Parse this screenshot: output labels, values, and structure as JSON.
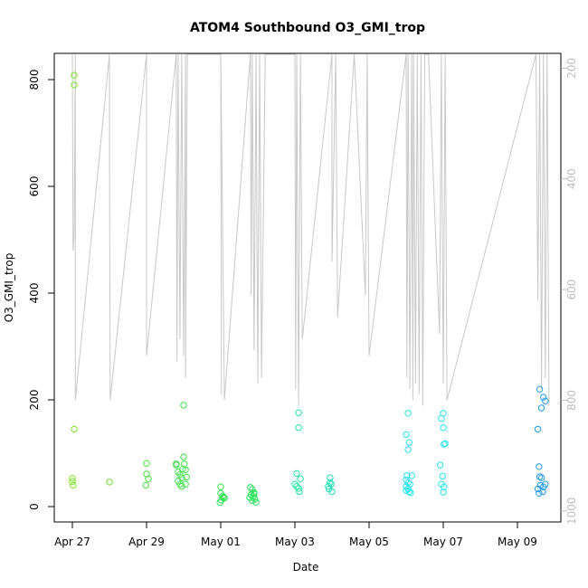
{
  "chart_data": {
    "type": "scatter",
    "title": "ATOM4 Southbound O3_GMI_trop",
    "xlabel": "Date",
    "ylabel": "O3_GMI_trop",
    "x_ticks": [
      "Apr 27",
      "Apr 29",
      "May 01",
      "May 03",
      "May 05",
      "May 07",
      "May 09"
    ],
    "y_ticks": [
      "0",
      "200",
      "400",
      "600",
      "800"
    ],
    "ylim": [
      0,
      840
    ],
    "y2_ticks": [
      "200",
      "400",
      "600",
      "800",
      "1000"
    ],
    "y2lim_pressure": [
      1020,
      175
    ],
    "grid": false,
    "points": [
      {
        "day": 0.05,
        "y": 808,
        "color": "#7fe52a"
      },
      {
        "day": 0.05,
        "y": 790,
        "color": "#7fe52a"
      },
      {
        "day": 0.05,
        "y": 145,
        "color": "#7fe52a"
      },
      {
        "day": 0.0,
        "y": 53,
        "color": "#7fe52a"
      },
      {
        "day": 0.0,
        "y": 47,
        "color": "#7fe52a"
      },
      {
        "day": 0.02,
        "y": 40,
        "color": "#7fe52a"
      },
      {
        "day": 1.0,
        "y": 46,
        "color": "#6ee43a"
      },
      {
        "day": 2.0,
        "y": 81,
        "color": "#4fe343"
      },
      {
        "day": 2.0,
        "y": 61,
        "color": "#4fe343"
      },
      {
        "day": 2.05,
        "y": 52,
        "color": "#4fe343"
      },
      {
        "day": 1.98,
        "y": 40,
        "color": "#4fe343"
      },
      {
        "day": 2.8,
        "y": 80,
        "color": "#3ee24a"
      },
      {
        "day": 2.8,
        "y": 78,
        "color": "#3ee24a"
      },
      {
        "day": 2.85,
        "y": 65,
        "color": "#3ee24a"
      },
      {
        "day": 2.9,
        "y": 60,
        "color": "#3ee24a"
      },
      {
        "day": 2.95,
        "y": 54,
        "color": "#3ee24a"
      },
      {
        "day": 2.85,
        "y": 48,
        "color": "#3ee24a"
      },
      {
        "day": 2.9,
        "y": 42,
        "color": "#3ee24a"
      },
      {
        "day": 2.95,
        "y": 38,
        "color": "#3ee24a"
      },
      {
        "day": 3.0,
        "y": 93,
        "color": "#3ee24a"
      },
      {
        "day": 3.02,
        "y": 80,
        "color": "#3ee24a"
      },
      {
        "day": 2.97,
        "y": 70,
        "color": "#3ee24a"
      },
      {
        "day": 3.05,
        "y": 69,
        "color": "#3ee24a"
      },
      {
        "day": 3.08,
        "y": 55,
        "color": "#3ee24a"
      },
      {
        "day": 3.05,
        "y": 42,
        "color": "#3ee24a"
      },
      {
        "day": 3.0,
        "y": 190,
        "color": "#3ee24a"
      },
      {
        "day": 4.0,
        "y": 37,
        "color": "#2de24f"
      },
      {
        "day": 4.0,
        "y": 25,
        "color": "#2de24f"
      },
      {
        "day": 4.05,
        "y": 20,
        "color": "#2de24f"
      },
      {
        "day": 4.1,
        "y": 16,
        "color": "#2de24f"
      },
      {
        "day": 4.02,
        "y": 12,
        "color": "#2de24f"
      },
      {
        "day": 3.98,
        "y": 8,
        "color": "#2de24f"
      },
      {
        "day": 4.08,
        "y": 18,
        "color": "#2de24f"
      },
      {
        "day": 4.8,
        "y": 36,
        "color": "#24e155"
      },
      {
        "day": 4.85,
        "y": 32,
        "color": "#24e155"
      },
      {
        "day": 4.9,
        "y": 26,
        "color": "#24e155"
      },
      {
        "day": 4.82,
        "y": 22,
        "color": "#24e155"
      },
      {
        "day": 4.88,
        "y": 19,
        "color": "#24e155"
      },
      {
        "day": 4.78,
        "y": 17,
        "color": "#24e155"
      },
      {
        "day": 4.92,
        "y": 14,
        "color": "#24e155"
      },
      {
        "day": 4.85,
        "y": 11,
        "color": "#24e155"
      },
      {
        "day": 4.95,
        "y": 8,
        "color": "#24e155"
      },
      {
        "day": 4.9,
        "y": 24,
        "color": "#24e155"
      },
      {
        "day": 6.1,
        "y": 176,
        "color": "#20e3a0"
      },
      {
        "day": 6.1,
        "y": 148,
        "color": "#20e3a0"
      },
      {
        "day": 6.05,
        "y": 62,
        "color": "#20e3a0"
      },
      {
        "day": 6.15,
        "y": 52,
        "color": "#20e3a0"
      },
      {
        "day": 6.0,
        "y": 42,
        "color": "#20e3a0"
      },
      {
        "day": 6.05,
        "y": 38,
        "color": "#20e3a0"
      },
      {
        "day": 6.1,
        "y": 34,
        "color": "#20e3a0"
      },
      {
        "day": 6.12,
        "y": 28,
        "color": "#20e3a0"
      },
      {
        "day": 6.95,
        "y": 54,
        "color": "#1fe0b4"
      },
      {
        "day": 6.95,
        "y": 45,
        "color": "#1fe0b4"
      },
      {
        "day": 6.98,
        "y": 42,
        "color": "#1fe0b4"
      },
      {
        "day": 6.9,
        "y": 38,
        "color": "#1fe0b4"
      },
      {
        "day": 7.0,
        "y": 28,
        "color": "#1fe0b4"
      },
      {
        "day": 6.92,
        "y": 33,
        "color": "#1fe0b4"
      },
      {
        "day": 9.05,
        "y": 175,
        "color": "#22e6ee"
      },
      {
        "day": 9.0,
        "y": 135,
        "color": "#22e6ee"
      },
      {
        "day": 9.08,
        "y": 120,
        "color": "#22e6ee"
      },
      {
        "day": 9.05,
        "y": 107,
        "color": "#22e6ee"
      },
      {
        "day": 9.02,
        "y": 58,
        "color": "#22e6ee"
      },
      {
        "day": 9.15,
        "y": 58,
        "color": "#22e6ee"
      },
      {
        "day": 9.0,
        "y": 50,
        "color": "#22e6ee"
      },
      {
        "day": 9.05,
        "y": 45,
        "color": "#22e6ee"
      },
      {
        "day": 9.1,
        "y": 42,
        "color": "#22e6ee"
      },
      {
        "day": 9.0,
        "y": 38,
        "color": "#22e6ee"
      },
      {
        "day": 9.05,
        "y": 33,
        "color": "#22e6ee"
      },
      {
        "day": 9.08,
        "y": 28,
        "color": "#22e6ee"
      },
      {
        "day": 9.12,
        "y": 26,
        "color": "#22e6ee"
      },
      {
        "day": 9.0,
        "y": 30,
        "color": "#22e6ee"
      },
      {
        "day": 10.0,
        "y": 175,
        "color": "#23e5f0"
      },
      {
        "day": 9.95,
        "y": 165,
        "color": "#23e5f0"
      },
      {
        "day": 10.0,
        "y": 148,
        "color": "#23e5f0"
      },
      {
        "day": 10.05,
        "y": 118,
        "color": "#23e5f0"
      },
      {
        "day": 10.02,
        "y": 117,
        "color": "#23e5f0"
      },
      {
        "day": 9.92,
        "y": 78,
        "color": "#23e5f0"
      },
      {
        "day": 9.98,
        "y": 57,
        "color": "#23e5f0"
      },
      {
        "day": 9.95,
        "y": 42,
        "color": "#23e5f0"
      },
      {
        "day": 10.02,
        "y": 37,
        "color": "#23e5f0"
      },
      {
        "day": 10.0,
        "y": 27,
        "color": "#23e5f0"
      },
      {
        "day": 12.6,
        "y": 220,
        "color": "#1e9ae8"
      },
      {
        "day": 12.7,
        "y": 205,
        "color": "#1e9ae8"
      },
      {
        "day": 12.75,
        "y": 198,
        "color": "#1e9ae8"
      },
      {
        "day": 12.65,
        "y": 185,
        "color": "#1e9ae8"
      },
      {
        "day": 12.55,
        "y": 145,
        "color": "#1e9ae8"
      },
      {
        "day": 12.58,
        "y": 75,
        "color": "#1e9ae8"
      },
      {
        "day": 12.6,
        "y": 56,
        "color": "#1e9ae8"
      },
      {
        "day": 12.65,
        "y": 54,
        "color": "#1e9ae8"
      },
      {
        "day": 12.75,
        "y": 42,
        "color": "#1e9ae8"
      },
      {
        "day": 12.62,
        "y": 40,
        "color": "#1e9ae8"
      },
      {
        "day": 12.7,
        "y": 37,
        "color": "#1e9ae8"
      },
      {
        "day": 12.55,
        "y": 33,
        "color": "#1e9ae8"
      },
      {
        "day": 12.68,
        "y": 28,
        "color": "#1e9ae8"
      },
      {
        "day": 12.58,
        "y": 25,
        "color": "#1e9ae8"
      }
    ],
    "pressure_track": [
      [
        0.0,
        175
      ],
      [
        0.02,
        530
      ],
      [
        0.05,
        500
      ],
      [
        0.08,
        175
      ],
      [
        0.08,
        800
      ],
      [
        1.0,
        175
      ],
      [
        1.0,
        340
      ],
      [
        1.02,
        800
      ],
      [
        2.0,
        175
      ],
      [
        2.0,
        250
      ],
      [
        2.0,
        720
      ],
      [
        2.8,
        175
      ],
      [
        2.82,
        730
      ],
      [
        2.85,
        175
      ],
      [
        2.9,
        690
      ],
      [
        2.95,
        175
      ],
      [
        3.0,
        720
      ],
      [
        3.05,
        175
      ],
      [
        3.05,
        760
      ],
      [
        3.1,
        175
      ],
      [
        4.0,
        175
      ],
      [
        4.02,
        790
      ],
      [
        4.0,
        175
      ],
      [
        4.1,
        800
      ],
      [
        4.8,
        175
      ],
      [
        4.82,
        610
      ],
      [
        4.85,
        175
      ],
      [
        4.9,
        710
      ],
      [
        4.95,
        175
      ],
      [
        5.0,
        770
      ],
      [
        5.05,
        175
      ],
      [
        5.1,
        760
      ],
      [
        5.2,
        175
      ],
      [
        6.0,
        175
      ],
      [
        6.02,
        780
      ],
      [
        6.05,
        175
      ],
      [
        6.1,
        810
      ],
      [
        6.15,
        175
      ],
      [
        6.2,
        690
      ],
      [
        7.0,
        175
      ],
      [
        7.0,
        550
      ],
      [
        7.1,
        175
      ],
      [
        7.15,
        650
      ],
      [
        7.6,
        175
      ],
      [
        7.9,
        610
      ],
      [
        7.95,
        175
      ],
      [
        8.0,
        720
      ],
      [
        9.0,
        175
      ],
      [
        9.02,
        760
      ],
      [
        9.05,
        175
      ],
      [
        9.1,
        780
      ],
      [
        9.15,
        175
      ],
      [
        9.18,
        800
      ],
      [
        9.2,
        175
      ],
      [
        9.25,
        770
      ],
      [
        9.3,
        175
      ],
      [
        9.35,
        790
      ],
      [
        9.4,
        175
      ],
      [
        9.45,
        810
      ],
      [
        9.5,
        175
      ],
      [
        9.6,
        175
      ],
      [
        9.9,
        680
      ],
      [
        9.95,
        175
      ],
      [
        10.0,
        770
      ],
      [
        10.05,
        175
      ],
      [
        10.1,
        800
      ],
      [
        12.5,
        175
      ],
      [
        12.55,
        620
      ],
      [
        12.6,
        175
      ],
      [
        12.65,
        780
      ],
      [
        12.7,
        175
      ],
      [
        12.75,
        760
      ],
      [
        12.8,
        175
      ],
      [
        12.85,
        810
      ]
    ]
  }
}
